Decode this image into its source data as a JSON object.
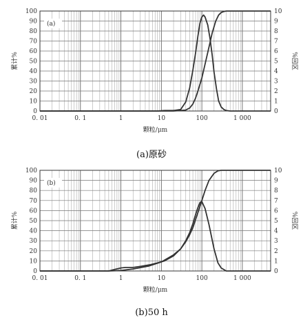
{
  "chart_data": [
    {
      "type": "line",
      "panel_label": "(a)",
      "caption": "(a)原砂",
      "xlabel": "颗粒/μm",
      "ylabel_left": "累计%",
      "ylabel_right": "%回区",
      "x_scale": "log",
      "xlim": [
        0.01,
        5000
      ],
      "ylim_left": [
        0,
        100
      ],
      "ylim_right": [
        0,
        10
      ],
      "x_ticks": [
        0.01,
        0.1,
        1,
        10,
        100,
        1000
      ],
      "x_tick_labels": [
        "0. 01",
        "0. 1",
        "1",
        "10",
        "100",
        "1 000"
      ],
      "y_ticks_left": [
        0,
        10,
        20,
        30,
        40,
        50,
        60,
        70,
        80,
        90,
        100
      ],
      "y_ticks_right": [
        0,
        1,
        2,
        3,
        4,
        5,
        6,
        7,
        8,
        9,
        10
      ],
      "grid": true,
      "series": [
        {
          "axis": "right",
          "x": [
            0.01,
            8,
            12,
            20,
            30,
            40,
            50,
            60,
            70,
            80,
            90,
            100,
            110,
            120,
            140,
            160,
            180,
            200,
            230,
            260,
            300,
            350,
            400,
            500,
            5000
          ],
          "y": [
            0,
            0,
            0.05,
            0.05,
            0.15,
            0.9,
            2.3,
            4.1,
            5.8,
            7.5,
            8.8,
            9.4,
            9.6,
            9.4,
            8.6,
            7.2,
            5.6,
            3.9,
            2.2,
            1.0,
            0.4,
            0.15,
            0.05,
            0,
            0
          ]
        },
        {
          "axis": "left",
          "x": [
            0.01,
            8,
            20,
            40,
            50,
            60,
            70,
            80,
            100,
            120,
            150,
            180,
            220,
            260,
            300,
            350,
            400,
            500,
            600,
            5000
          ],
          "y": [
            0,
            0,
            0,
            1,
            3,
            7,
            13,
            20,
            33,
            47,
            64,
            78,
            90,
            96,
            98.5,
            99.5,
            100,
            100,
            100,
            100
          ]
        }
      ]
    },
    {
      "type": "line",
      "panel_label": "(b)",
      "caption": "(b)50 h",
      "xlabel": "颗粒/μm",
      "ylabel_left": "累计%",
      "ylabel_right": "%回区",
      "x_scale": "log",
      "xlim": [
        0.01,
        5000
      ],
      "ylim_left": [
        0,
        100
      ],
      "ylim_right": [
        0,
        10
      ],
      "x_ticks": [
        0.01,
        0.1,
        1,
        10,
        100,
        1000
      ],
      "x_tick_labels": [
        "0. 01",
        "0. 1",
        "1",
        "10",
        "100",
        "1 000"
      ],
      "y_ticks_left": [
        0,
        10,
        20,
        30,
        40,
        50,
        60,
        70,
        80,
        90,
        100
      ],
      "y_ticks_right": [
        0,
        1,
        2,
        3,
        4,
        5,
        6,
        7,
        8,
        9,
        10
      ],
      "grid": true,
      "series": [
        {
          "axis": "right",
          "x": [
            0.01,
            0.5,
            0.7,
            1.0,
            1.3,
            2,
            3,
            5,
            8,
            12,
            20,
            30,
            40,
            50,
            60,
            70,
            80,
            90,
            100,
            120,
            150,
            200,
            250,
            300,
            400,
            5000
          ],
          "y": [
            0,
            0,
            0.15,
            0.3,
            0.35,
            0.35,
            0.45,
            0.6,
            0.8,
            1.0,
            1.5,
            2.2,
            3.0,
            3.8,
            4.7,
            5.6,
            6.3,
            6.8,
            6.9,
            6.2,
            4.6,
            2.2,
            0.8,
            0.3,
            0,
            0
          ]
        },
        {
          "axis": "left",
          "x": [
            0.01,
            0.5,
            1,
            2,
            5,
            10,
            20,
            30,
            40,
            50,
            60,
            70,
            80,
            100,
            120,
            150,
            200,
            250,
            300,
            400,
            5000
          ],
          "y": [
            0,
            0,
            0.5,
            2,
            5,
            9,
            16,
            22,
            29,
            36,
            43,
            51,
            58,
            70,
            80,
            90,
            97,
            99.5,
            100,
            100,
            100
          ]
        }
      ]
    }
  ]
}
